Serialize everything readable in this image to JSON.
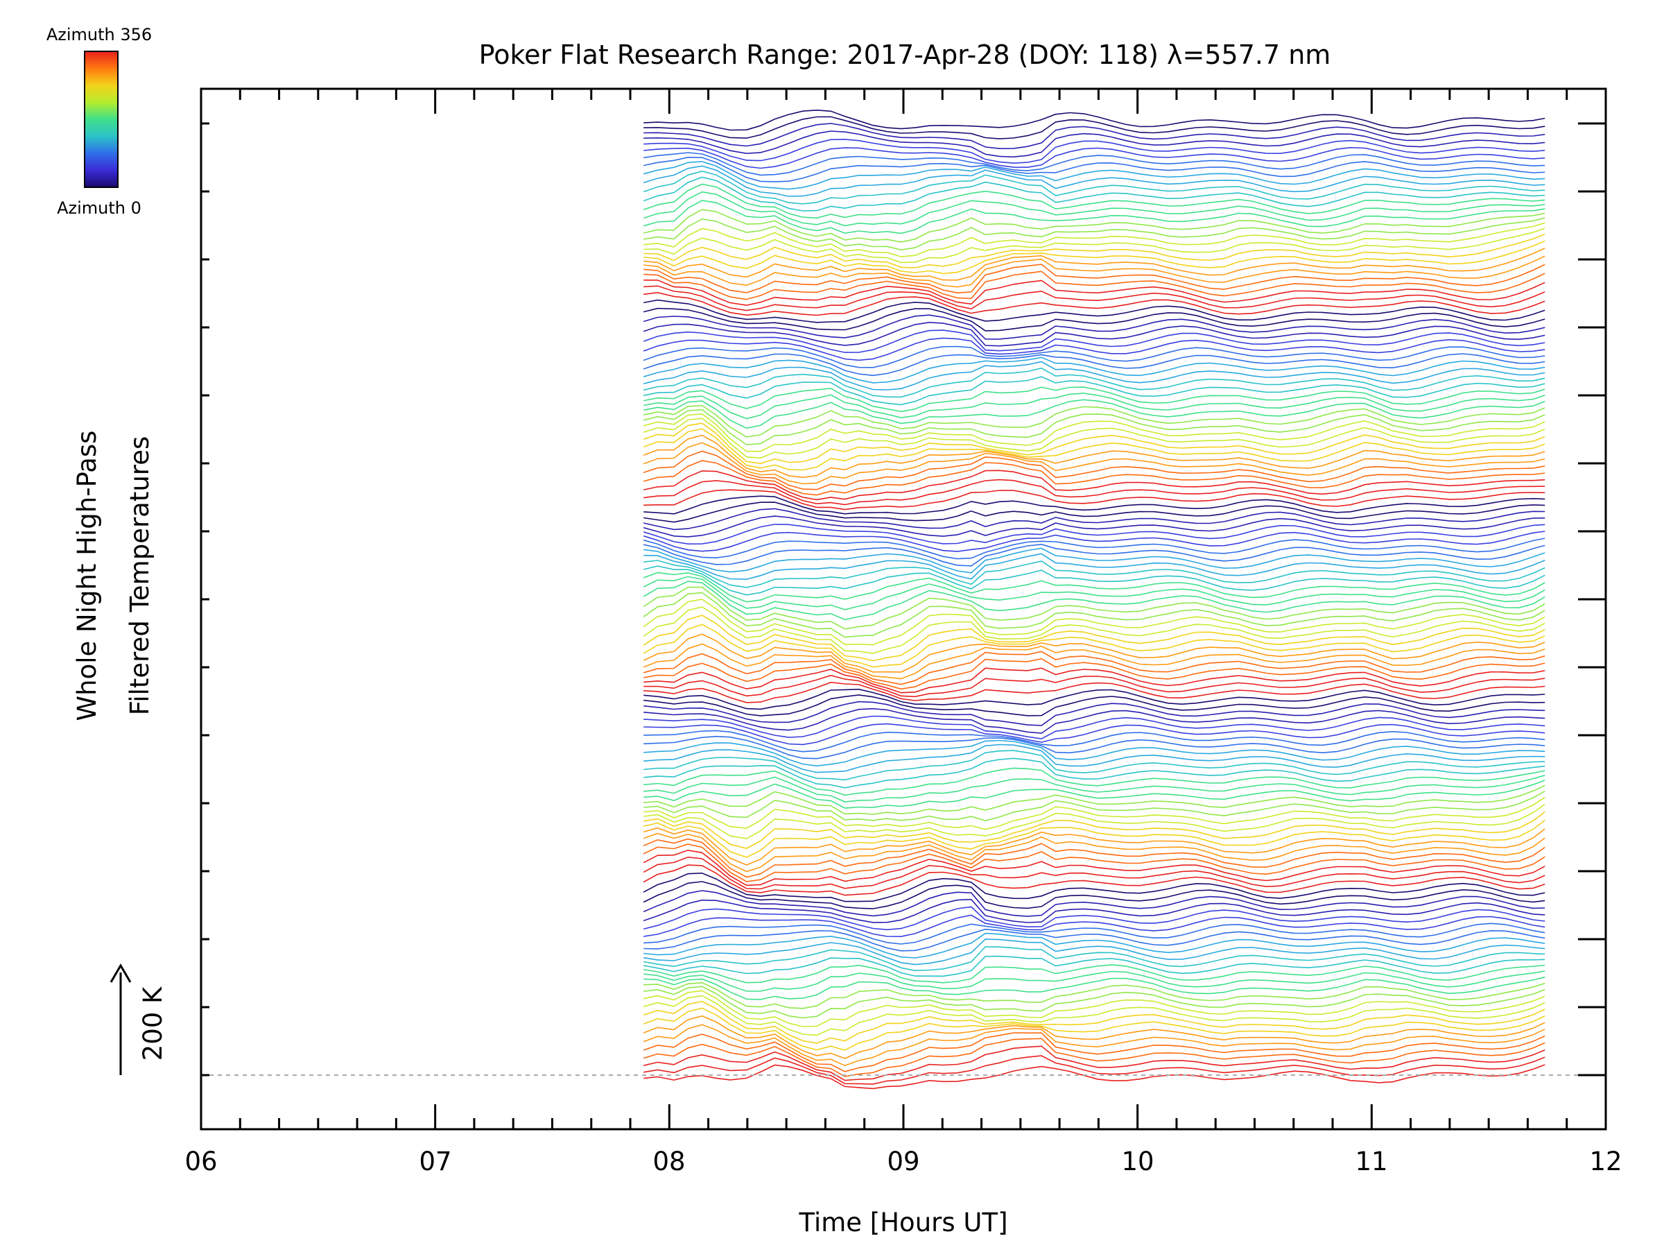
{
  "chart_data": {
    "type": "line",
    "title": "Poker Flat Research Range: 2017-Apr-28 (DOY: 118) λ=557.7 nm",
    "xlabel": "Time [Hours UT]",
    "ylabel_line1": "Whole Night High-Pass",
    "ylabel_line2": "Filtered Temperatures",
    "scale_label": "200 K",
    "xlim": [
      6,
      12
    ],
    "x_tick_labels": [
      "06",
      "07",
      "08",
      "09",
      "10",
      "11",
      "12"
    ],
    "grid": false,
    "legend": "colorbar top-left",
    "colorbar": {
      "top_label": "Azimuth 356",
      "bottom_label": "Azimuth 0",
      "colors": [
        "#1a0a6e",
        "#3a2bd6",
        "#2f6fe8",
        "#2bc3c8",
        "#3fe08a",
        "#b6ec2e",
        "#f2d21a",
        "#ff7a10",
        "#e8201e"
      ]
    },
    "x": [
      7.89,
      7.95,
      8.02,
      8.08,
      8.14,
      8.2,
      8.26,
      8.33,
      8.39,
      8.45,
      8.51,
      8.57,
      8.63,
      8.69,
      8.75,
      8.81,
      8.87,
      8.93,
      8.99,
      9.05,
      9.11,
      9.17,
      9.23,
      9.29,
      9.35,
      9.41,
      9.47,
      9.53,
      9.59,
      9.65,
      9.71,
      9.77,
      9.83,
      9.89,
      9.95,
      10.01,
      10.07,
      10.13,
      10.19,
      10.25,
      10.31,
      10.37,
      10.43,
      10.49,
      10.55,
      10.61,
      10.67,
      10.73,
      10.79,
      10.85,
      10.91,
      10.97,
      11.03,
      11.09,
      11.15,
      11.21,
      11.27,
      11.33,
      11.39,
      11.45,
      11.51,
      11.57,
      11.63,
      11.69,
      11.74
    ],
    "series_count": 140,
    "profile_note": "",
    "baseline_profile": [
      0.0,
      0.2,
      0.1,
      0.5,
      0.6,
      0.25,
      -0.2,
      -0.55,
      -0.45,
      -0.15,
      -0.3,
      -0.4,
      -0.45,
      -0.3,
      -0.6,
      -0.5,
      -0.55,
      -0.45,
      -0.5,
      -0.35,
      -0.1,
      -0.15,
      -0.15,
      -0.1,
      -0.05,
      -0.05,
      0.0,
      0.0,
      0.1,
      0.05,
      0.1,
      0.1,
      0.05,
      0.05,
      0.0,
      -0.05,
      -0.05,
      -0.1,
      -0.1,
      -0.1,
      -0.15,
      -0.2,
      -0.15,
      -0.2,
      -0.25,
      -0.25,
      -0.2,
      -0.2,
      -0.15,
      -0.1,
      -0.05,
      0.05,
      -0.05,
      -0.15,
      -0.1,
      -0.1,
      -0.05,
      -0.05,
      0.0,
      0.0,
      0.0,
      0.0,
      0.05,
      0.2,
      0.45
    ]
  }
}
